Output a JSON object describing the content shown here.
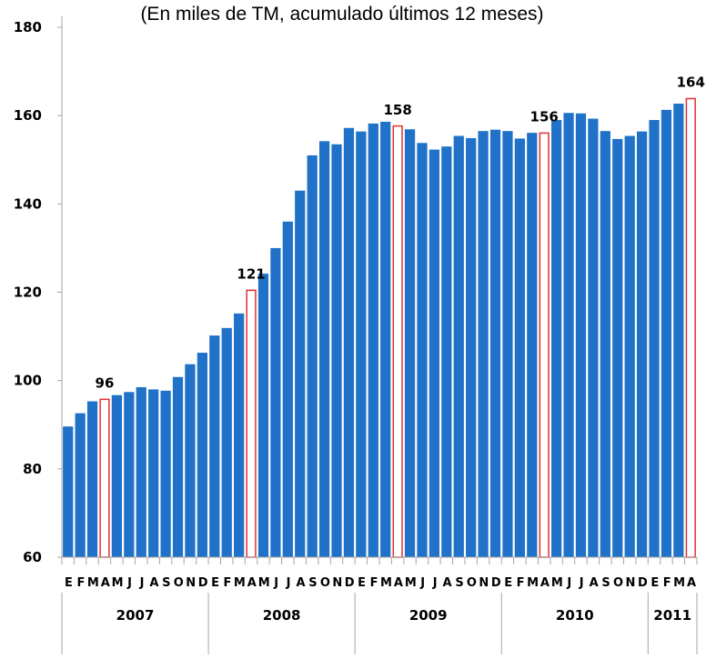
{
  "chart_data": {
    "type": "bar",
    "subtitle": "(En miles de TM, acumulado últimos 12 meses)",
    "ylim": [
      60,
      180
    ],
    "yticks": [
      "60",
      "80",
      "100",
      "120",
      "140",
      "160",
      "180"
    ],
    "grid": false,
    "colors": {
      "bar": "#1f72c7",
      "highlight_fill": "#ffffff",
      "highlight_stroke": "#e03030",
      "axis": "#a6a6a6"
    },
    "month_labels": [
      "E",
      "F",
      "M",
      "A",
      "M",
      "J",
      "J",
      "A",
      "S",
      "O",
      "N",
      "D",
      "E",
      "F",
      "M",
      "A",
      "M",
      "J",
      "J",
      "A",
      "S",
      "O",
      "N",
      "D",
      "E",
      "F",
      "M",
      "A",
      "M",
      "J",
      "J",
      "A",
      "S",
      "O",
      "N",
      "D",
      "E",
      "F",
      "M",
      "A",
      "M",
      "J",
      "J",
      "A",
      "S",
      "O",
      "N",
      "D",
      "E",
      "F",
      "M",
      "A"
    ],
    "years": [
      {
        "label": "2007",
        "months": 12
      },
      {
        "label": "2008",
        "months": 12
      },
      {
        "label": "2009",
        "months": 12
      },
      {
        "label": "2010",
        "months": 12
      },
      {
        "label": "2011",
        "months": 4
      }
    ],
    "values": [
      89.6,
      92.6,
      95.3,
      95.9,
      96.7,
      97.4,
      98.5,
      98.0,
      97.7,
      100.8,
      103.7,
      106.3,
      110.2,
      111.9,
      115.2,
      120.6,
      124.2,
      130.0,
      136.0,
      143.0,
      151.0,
      154.2,
      153.5,
      157.2,
      156.4,
      158.2,
      158.6,
      157.8,
      156.9,
      153.8,
      152.3,
      153.0,
      155.4,
      154.9,
      156.5,
      156.8,
      156.5,
      154.8,
      156.1,
      156.2,
      159.0,
      160.6,
      160.5,
      159.3,
      156.5,
      154.7,
      155.4,
      156.4,
      159.0,
      161.3,
      162.7,
      164.0
    ],
    "highlight_indices": [
      3,
      15,
      27,
      39,
      51
    ],
    "data_labels": [
      {
        "index": 3,
        "text": "96"
      },
      {
        "index": 15,
        "text": "121"
      },
      {
        "index": 27,
        "text": "158"
      },
      {
        "index": 39,
        "text": "156"
      },
      {
        "index": 51,
        "text": "164"
      }
    ]
  }
}
